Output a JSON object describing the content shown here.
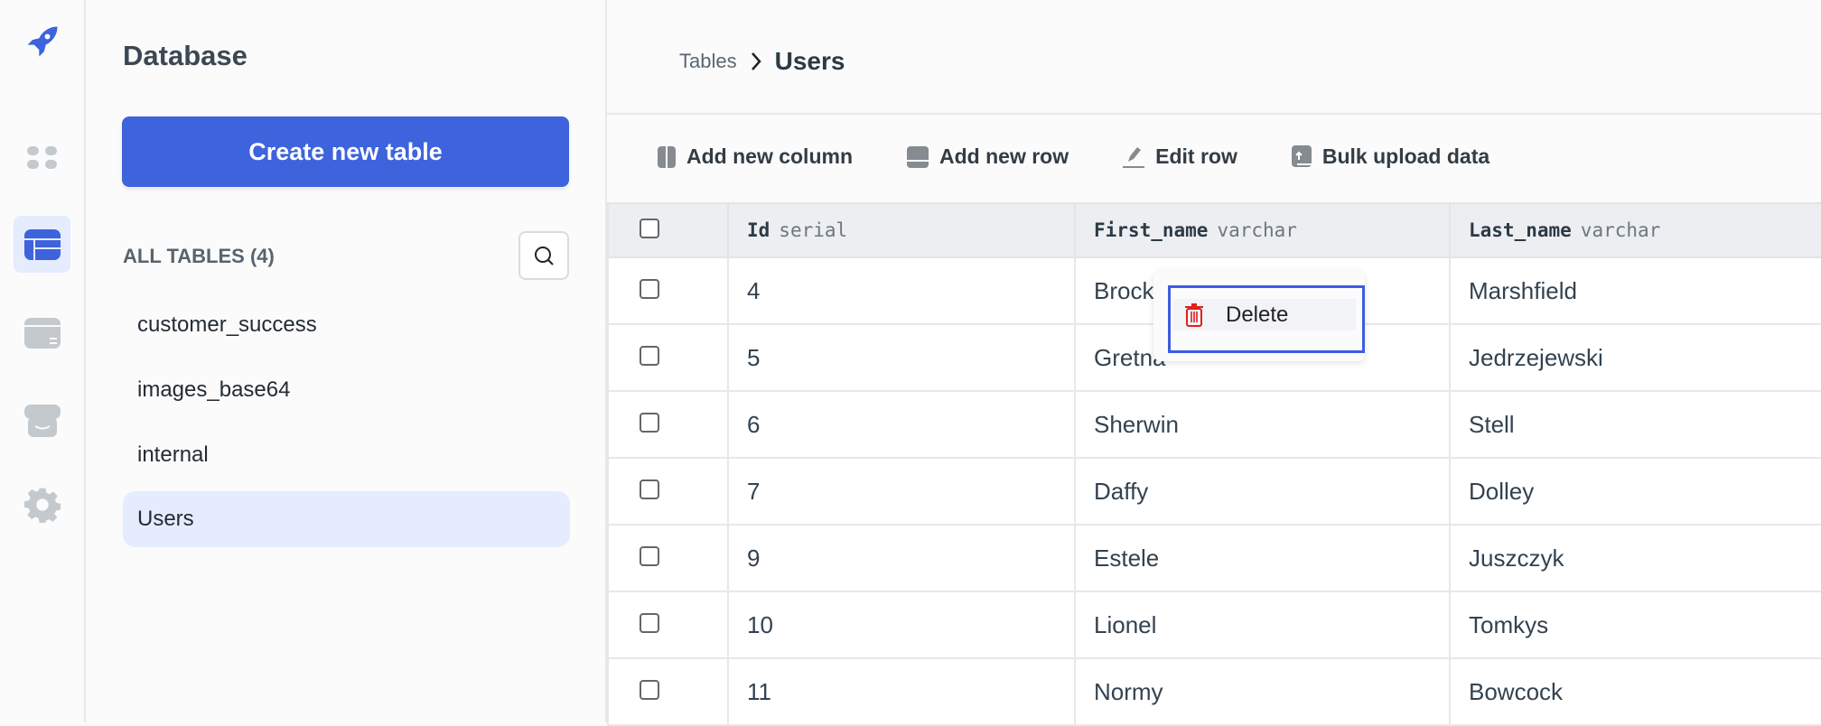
{
  "rail": {
    "items": [
      {
        "icon": "rocket-logo-icon"
      },
      {
        "icon": "apps-grid-icon"
      },
      {
        "icon": "database-table-icon",
        "active": true
      },
      {
        "icon": "wallet-icon"
      },
      {
        "icon": "marketplace-icon"
      },
      {
        "icon": "gear-icon"
      }
    ],
    "accent": "#3d63dd"
  },
  "sidebar": {
    "title": "Database",
    "create_label": "Create new table",
    "section_label": "ALL TABLES (4)",
    "tables": [
      "customer_success",
      "images_base64",
      "internal",
      "Users"
    ],
    "selected": "Users"
  },
  "breadcrumb": {
    "parent": "Tables",
    "current": "Users"
  },
  "toolbar": {
    "add_column": "Add new column",
    "add_row": "Add new row",
    "edit_row": "Edit row",
    "bulk_upload": "Bulk upload data"
  },
  "table": {
    "columns": [
      {
        "name": "Id",
        "type": "serial"
      },
      {
        "name": "First_name",
        "type": "varchar"
      },
      {
        "name": "Last_name",
        "type": "varchar"
      }
    ],
    "rows": [
      [
        "4",
        "Brock",
        "Marshfield"
      ],
      [
        "5",
        "Gretna",
        "Jedrzejewski"
      ],
      [
        "6",
        "Sherwin",
        "Stell"
      ],
      [
        "7",
        "Daffy",
        "Dolley"
      ],
      [
        "9",
        "Estele",
        "Juszczyk"
      ],
      [
        "10",
        "Lionel",
        "Tomkys"
      ],
      [
        "11",
        "Normy",
        "Bowcock"
      ]
    ]
  },
  "context_menu": {
    "delete_label": "Delete",
    "delete_color": "#e0201b"
  }
}
